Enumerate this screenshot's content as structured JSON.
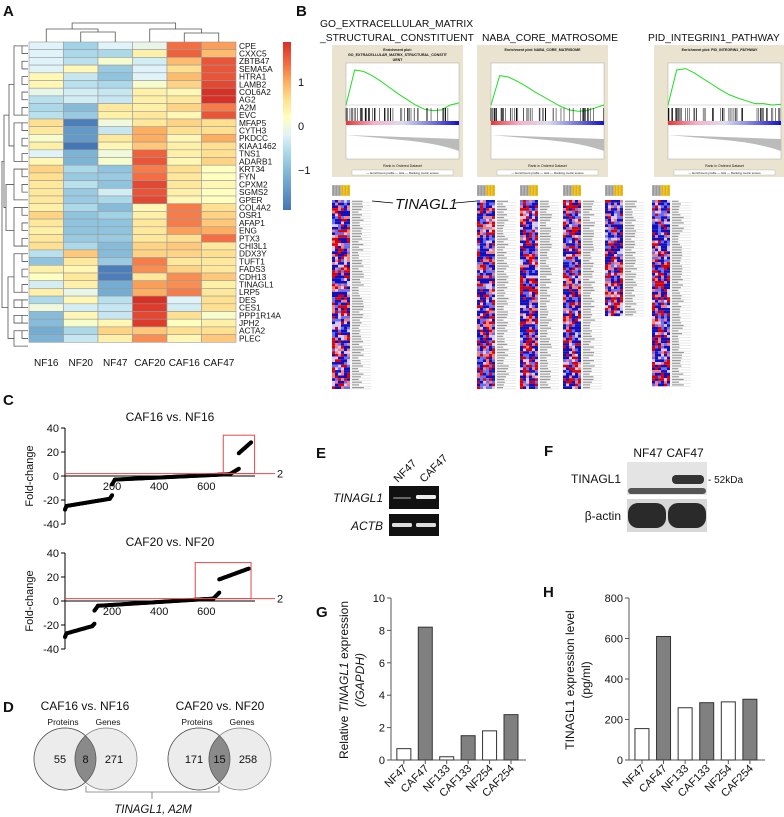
{
  "panels": {
    "A": "A",
    "B": "B",
    "C": "C",
    "D": "D",
    "E": "E",
    "F": "F",
    "G": "G",
    "H": "H"
  },
  "heatmap": {
    "columns": [
      "NF16",
      "NF20",
      "NF47",
      "CAF20",
      "CAF16",
      "CAF47"
    ],
    "colorbar_ticks": [
      {
        "value": 1,
        "label": "1"
      },
      {
        "value": 0,
        "label": "0"
      },
      {
        "value": -1,
        "label": "−1"
      }
    ],
    "colorbar_range": [
      -1.9,
      1.9
    ],
    "rows": [
      {
        "gene": "CPE",
        "v": [
          -0.2,
          -0.7,
          -0.2,
          -0.1,
          1.4,
          1.1
        ]
      },
      {
        "gene": "CXXC5",
        "v": [
          -0.2,
          -0.6,
          -0.6,
          0.4,
          1.5,
          0.9
        ]
      },
      {
        "gene": "ZBTB47",
        "v": [
          -0.2,
          -0.5,
          0.1,
          -0.3,
          0.9,
          1.6
        ]
      },
      {
        "gene": "SEMA5A",
        "v": [
          -0.2,
          0.3,
          -0.8,
          -0.2,
          0.6,
          1.6
        ]
      },
      {
        "gene": "HTRA1",
        "v": [
          0.3,
          -0.4,
          -0.9,
          -0.2,
          0.9,
          1.6
        ]
      },
      {
        "gene": "LAMB2",
        "v": [
          0.3,
          -0.5,
          -0.6,
          0.1,
          0.7,
          1.7
        ]
      },
      {
        "gene": "COL6A2",
        "v": [
          -0.1,
          -0.3,
          -0.4,
          0.4,
          0.3,
          1.9
        ]
      },
      {
        "gene": "AG2",
        "v": [
          -0.5,
          -0.3,
          -0.4,
          0.4,
          0.5,
          1.9
        ]
      },
      {
        "gene": "A2M",
        "v": [
          -0.6,
          -1.0,
          0.5,
          0.4,
          0.7,
          1.3
        ]
      },
      {
        "gene": "EVC",
        "v": [
          -0.5,
          -0.8,
          0.4,
          0.5,
          0.3,
          1.6
        ]
      },
      {
        "gene": "MFAP5",
        "v": [
          0.6,
          -1.7,
          0.0,
          0.5,
          0.7,
          0.6
        ]
      },
      {
        "gene": "CYTH3",
        "v": [
          0.5,
          -1.4,
          -0.4,
          1.0,
          0.6,
          0.6
        ]
      },
      {
        "gene": "PKDCC",
        "v": [
          0.1,
          -1.4,
          0.5,
          1.0,
          0.3,
          1.0
        ]
      },
      {
        "gene": "KIAA1462",
        "v": [
          0.4,
          -1.8,
          0.3,
          0.8,
          0.4,
          0.6
        ]
      },
      {
        "gene": "TNS1",
        "v": [
          -0.2,
          -1.1,
          0.0,
          1.5,
          0.4,
          0.6
        ]
      },
      {
        "gene": "ADARB1",
        "v": [
          0.3,
          -1.1,
          0.1,
          1.6,
          0.3,
          0.7
        ]
      },
      {
        "gene": "KRT34",
        "v": [
          0.7,
          -0.6,
          -0.9,
          1.3,
          0.6,
          0.2
        ]
      },
      {
        "gene": "FYN",
        "v": [
          0.6,
          -0.8,
          -0.8,
          1.4,
          0.5,
          0.2
        ]
      },
      {
        "gene": "CPXM2",
        "v": [
          0.5,
          -0.5,
          -0.9,
          1.7,
          0.5,
          0.3
        ]
      },
      {
        "gene": "SGMS2",
        "v": [
          0.5,
          -0.8,
          -0.3,
          1.6,
          0.4,
          0.2
        ]
      },
      {
        "gene": "GPER",
        "v": [
          0.5,
          -0.8,
          -0.6,
          1.7,
          0.3,
          0.2
        ]
      },
      {
        "gene": "COL4A2",
        "v": [
          0.4,
          -0.6,
          -1.0,
          0.3,
          1.3,
          0.6
        ]
      },
      {
        "gene": "OSR1",
        "v": [
          0.7,
          -0.9,
          -0.7,
          0.4,
          1.3,
          0.7
        ]
      },
      {
        "gene": "AFAP1",
        "v": [
          0.5,
          -0.9,
          -0.9,
          0.5,
          1.3,
          0.8
        ]
      },
      {
        "gene": "ENG",
        "v": [
          0.4,
          -0.9,
          -0.9,
          0.5,
          1.1,
          1.0
        ]
      },
      {
        "gene": "PTX3",
        "v": [
          0.5,
          -0.8,
          -0.8,
          0.5,
          0.6,
          1.4
        ]
      },
      {
        "gene": "CHI3L1",
        "v": [
          0.6,
          -0.6,
          -1.0,
          0.7,
          0.8,
          0.5
        ]
      },
      {
        "gene": "DDX3Y",
        "v": [
          -0.5,
          0.8,
          -1.0,
          0.7,
          0.7,
          0.6
        ]
      },
      {
        "gene": "TUFT1",
        "v": [
          -0.9,
          0.5,
          -0.8,
          1.3,
          0.5,
          0.5
        ]
      },
      {
        "gene": "FADS3",
        "v": [
          0.4,
          0.3,
          -1.7,
          1.2,
          0.7,
          0.5
        ]
      },
      {
        "gene": "CDH13",
        "v": [
          0.2,
          0.5,
          -1.7,
          0.5,
          1.2,
          0.8
        ]
      },
      {
        "gene": "TINAGL1",
        "v": [
          -0.3,
          0.4,
          -1.2,
          1.1,
          1.2,
          0.4
        ]
      },
      {
        "gene": "LRP5",
        "v": [
          0.4,
          -0.1,
          -1.2,
          1.0,
          1.3,
          0.5
        ]
      },
      {
        "gene": "DES",
        "v": [
          -0.6,
          0.3,
          -0.5,
          1.9,
          -0.2,
          0.6
        ]
      },
      {
        "gene": "CES1",
        "v": [
          0.0,
          -0.3,
          -0.4,
          1.8,
          -0.3,
          0.6
        ]
      },
      {
        "gene": "PPP1R14A",
        "v": [
          -1.0,
          0.3,
          -0.4,
          1.7,
          0.6,
          0.1
        ]
      },
      {
        "gene": "JPH2",
        "v": [
          -1.0,
          0.1,
          0.3,
          1.8,
          0.2,
          0.4
        ]
      },
      {
        "gene": "ACTA2",
        "v": [
          -1.2,
          -0.6,
          0.7,
          0.8,
          0.6,
          0.6
        ]
      },
      {
        "gene": "PLEC",
        "v": [
          -1.1,
          -0.4,
          0.4,
          1.2,
          0.3,
          0.8
        ]
      }
    ]
  },
  "gsea": {
    "titles": [
      {
        "line1": "GO_EXTRACELLULAR_MATRIX",
        "line2": "_STRUCTURAL_CONSTITUENT"
      },
      {
        "line1": "",
        "line2": "NABA_CORE_MATROSOME"
      },
      {
        "line1": "",
        "line2": "PID_INTEGRIN1_PATHWAY"
      }
    ],
    "plots": [
      {
        "header1": "Enrichment plot:",
        "header2": "GO_EXTRACELLULAR_MATRIX_STRUCTURAL_CONSTIT",
        "header3": "UENT",
        "es_curve": [
          0,
          0.5,
          0.48,
          0.42,
          0.34,
          0.25,
          0.16,
          0.08,
          0.0,
          -0.06,
          -0.08,
          -0.07,
          0.0,
          0.03
        ],
        "xlabel": "Rank in Ordered Dataset",
        "legend": "— Enrichment profile  — Hits  — Ranking metric scores"
      },
      {
        "header1": "Enrichment plot: NABA_CORE_MATRISOME",
        "header2": "",
        "header3": "",
        "es_curve": [
          0,
          0.42,
          0.4,
          0.34,
          0.27,
          0.19,
          0.12,
          0.05,
          -0.02,
          -0.07,
          -0.09,
          -0.08,
          -0.04,
          0.0
        ],
        "xlabel": "Rank in Ordered Dataset",
        "legend": "— Enrichment profile  — Hits  — Ranking metric scores"
      },
      {
        "header1": "Enrichment plot: PID_INTEGRIN1_PATHWAY",
        "header2": "",
        "header3": "",
        "es_curve": [
          0,
          0.5,
          0.52,
          0.46,
          0.38,
          0.3,
          0.22,
          0.15,
          0.1,
          0.06,
          0.02,
          0.02,
          0.0,
          0.01
        ],
        "xlabel": "Rank in Ordered Dataset",
        "legend": "— Enrichment profile  — Hits  — Ranking metric scores"
      }
    ],
    "callout_gene": "TINAGL1"
  },
  "chart_data": [
    {
      "type": "scatter",
      "title": "CAF16 vs. NF16",
      "ylabel": "Fold-change",
      "xticks": [
        200,
        400,
        600
      ],
      "yticks": [
        40,
        20,
        0,
        -20,
        -40
      ],
      "xlim": [
        0,
        790
      ],
      "ylim": [
        -40,
        40
      ],
      "threshold": {
        "value": 2,
        "label": "2"
      },
      "highlight_box": {
        "x": [
          672,
          805
        ],
        "y": [
          2,
          34
        ]
      },
      "segments": [
        {
          "x": [
            0,
            6
          ],
          "y": [
            -28,
            -25
          ]
        },
        {
          "x": [
            6,
            190
          ],
          "y": [
            -25,
            -19
          ]
        },
        {
          "x": [
            190,
            200
          ],
          "y": [
            -19,
            -16
          ]
        },
        {
          "x": [
            200,
            212
          ],
          "y": [
            -7,
            -3
          ]
        },
        {
          "x": [
            212,
            700
          ],
          "y": [
            -3,
            1.5
          ]
        },
        {
          "x": [
            700,
            738
          ],
          "y": [
            1.5,
            6
          ]
        },
        {
          "x": [
            738,
            790
          ],
          "y": [
            19,
            28
          ]
        }
      ]
    },
    {
      "type": "scatter",
      "title": "CAF20 vs. NF20",
      "ylabel": "Fold-change",
      "xticks": [
        200,
        400,
        600
      ],
      "yticks": [
        40,
        20,
        0,
        -20,
        -40
      ],
      "xlim": [
        0,
        790
      ],
      "ylim": [
        -40,
        40
      ],
      "threshold": {
        "value": 2,
        "label": "2"
      },
      "highlight_box": {
        "x": [
          553,
          790
        ],
        "y": [
          2,
          32
        ]
      },
      "segments": [
        {
          "x": [
            0,
            6
          ],
          "y": [
            -30,
            -27
          ]
        },
        {
          "x": [
            6,
            115
          ],
          "y": [
            -27,
            -21
          ]
        },
        {
          "x": [
            115,
            125
          ],
          "y": [
            -21,
            -19
          ]
        },
        {
          "x": [
            125,
            140
          ],
          "y": [
            -8,
            -4
          ]
        },
        {
          "x": [
            140,
            630
          ],
          "y": [
            -4,
            2
          ]
        },
        {
          "x": [
            630,
            655
          ],
          "y": [
            2,
            7
          ]
        },
        {
          "x": [
            655,
            780
          ],
          "y": [
            18,
            27
          ]
        }
      ]
    },
    {
      "type": "venn",
      "title": "CAF16 vs. NF16",
      "sets": [
        "Proteins",
        "Genes"
      ],
      "only_a": 55,
      "both": 8,
      "only_b": 271
    },
    {
      "type": "venn",
      "title": "CAF20 vs. NF20",
      "sets": [
        "Proteins",
        "Genes"
      ],
      "only_a": 171,
      "both": 15,
      "only_b": 258
    },
    {
      "type": "bar",
      "ylabel_parts": [
        "Relative ",
        "TINAGL1",
        " expression"
      ],
      "ylabel2": "(/GAPDH)",
      "categories": [
        "NF47",
        "CAF47",
        "NF133",
        "CAF133",
        "NF254",
        "CAF254"
      ],
      "values": [
        0.7,
        8.2,
        0.2,
        1.5,
        1.8,
        2.8
      ],
      "ylim": [
        0,
        10
      ],
      "yticks": [
        0,
        2,
        4,
        6,
        8,
        10
      ]
    },
    {
      "type": "bar",
      "ylabel": "TINAGL1 expression level",
      "ylabel2": "(pg/ml)",
      "categories": [
        "NF47",
        "CAF47",
        "NF133",
        "CAF133",
        "NF254",
        "CAF254"
      ],
      "values": [
        155,
        610,
        258,
        283,
        287,
        300
      ],
      "ylim": [
        0,
        800
      ],
      "yticks": [
        0,
        200,
        400,
        600,
        800
      ]
    }
  ],
  "venn_common": "TINAGL1, A2M",
  "gel": {
    "lanes": [
      "NF47",
      "CAF47"
    ],
    "rows": [
      "TINAGL1",
      "ACTB"
    ]
  },
  "western": {
    "lanes": [
      "NF47",
      "CAF47"
    ],
    "rows": [
      "TINAGL1",
      "β-actin"
    ],
    "marker": "- 52kDa"
  },
  "colors": {
    "nf_bar": "#ffffff",
    "caf_bar": "#808080",
    "threshold": "#e8474b",
    "gsea_curve": "#22dd22",
    "gsea_bg": "#e9e3cf"
  }
}
